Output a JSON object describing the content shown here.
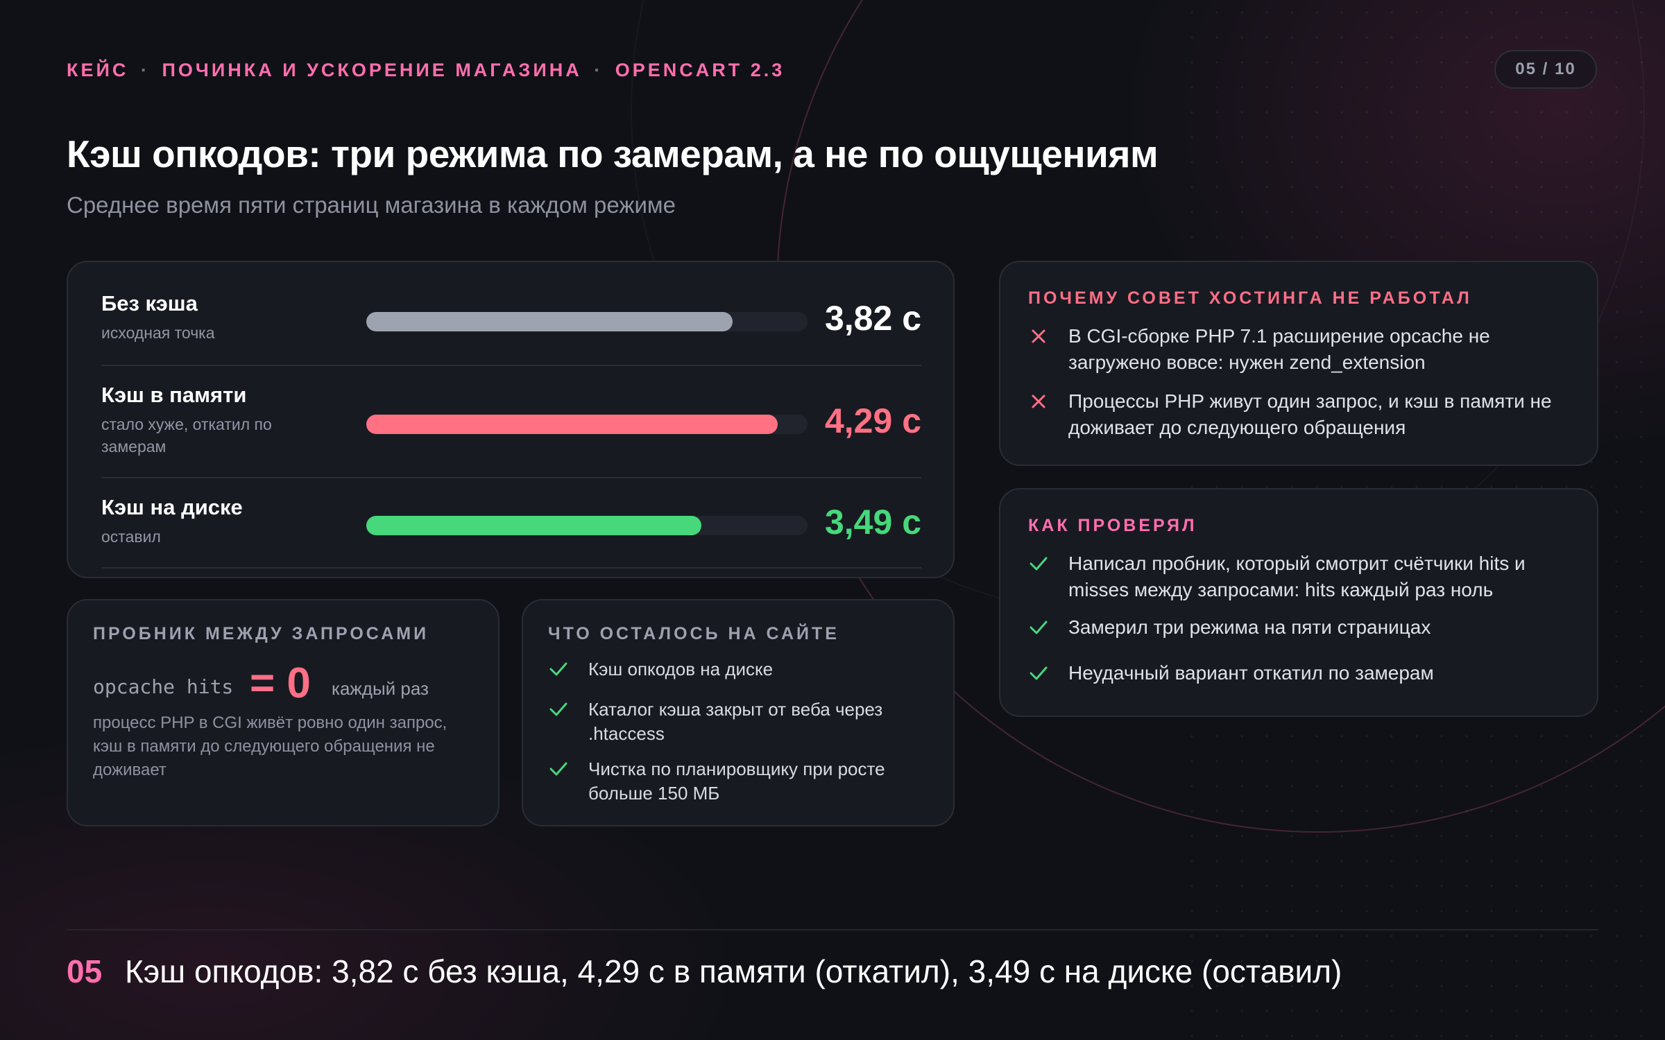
{
  "header": {
    "eyebrow": [
      "КЕЙС",
      "ПОЧИНКА И УСКОРЕНИЕ МАГАЗИНА",
      "OPENCART 2.3"
    ],
    "eyebrow_separator": "·",
    "page_counter": "05 / 10",
    "title": "Кэш опкодов: три режима по замерам, а не по ощущениям",
    "subtitle": "Среднее время пяти страниц магазина в каждом режиме"
  },
  "bars": {
    "scale_max_seconds": 4.6,
    "rows": [
      {
        "label": "Без кэша",
        "note": "исходная точка",
        "value": 3.82,
        "value_text": "3,82 с",
        "color": "#9ea3b0",
        "value_color": "#ffffff"
      },
      {
        "label": "Кэш в памяти",
        "note": "стало хуже, откатил по замерам",
        "value": 4.29,
        "value_text": "4,29 с",
        "color": "#ff7183",
        "value_color": "#ff7183"
      },
      {
        "label": "Кэш на диске",
        "note": "оставил",
        "value": 3.49,
        "value_text": "3,49 с",
        "color": "#46d87a",
        "value_color": "#46d87a"
      }
    ]
  },
  "probe": {
    "heading": "ПРОБНИК МЕЖДУ ЗАПРОСАМИ",
    "code": "opcache hits",
    "equals": "= 0",
    "tail": "каждый раз",
    "note": "процесс PHP в CGI живёт ровно один запрос, кэш в памяти до следующего обращения не доживает"
  },
  "remain": {
    "heading": "ЧТО ОСТАЛОСЬ НА САЙТЕ",
    "items": [
      "Кэш опкодов на диске",
      "Каталог кэша закрыт от веба через .htaccess",
      "Чистка по планировщику при росте больше 150 МБ"
    ]
  },
  "why": {
    "heading": "ПОЧЕМУ СОВЕТ ХОСТИНГА НЕ РАБОТАЛ",
    "items": [
      "В CGI-сборке PHP 7.1 расширение opcache не загружено вовсе: нужен zend_extension",
      "Процессы PHP живут один запрос, и кэш в памяти не доживает до следующего обращения"
    ]
  },
  "check": {
    "heading": "КАК ПРОВЕРЯЛ",
    "items": [
      "Написал пробник, который смотрит счётчики hits и misses между запросами: hits каждый раз ноль",
      "Замерил три режима на пяти страницах",
      "Неудачный вариант откатил по замерам"
    ]
  },
  "footer": {
    "number": "05",
    "text": "Кэш опкодов: 3,82 с без кэша, 4,29 с в памяти (откатил), 3,49 с на диске (оставил)"
  },
  "colors": {
    "accent": "#ff6fae",
    "bad": "#ff7183",
    "good": "#46d87a",
    "muted": "#9ea3b0"
  }
}
